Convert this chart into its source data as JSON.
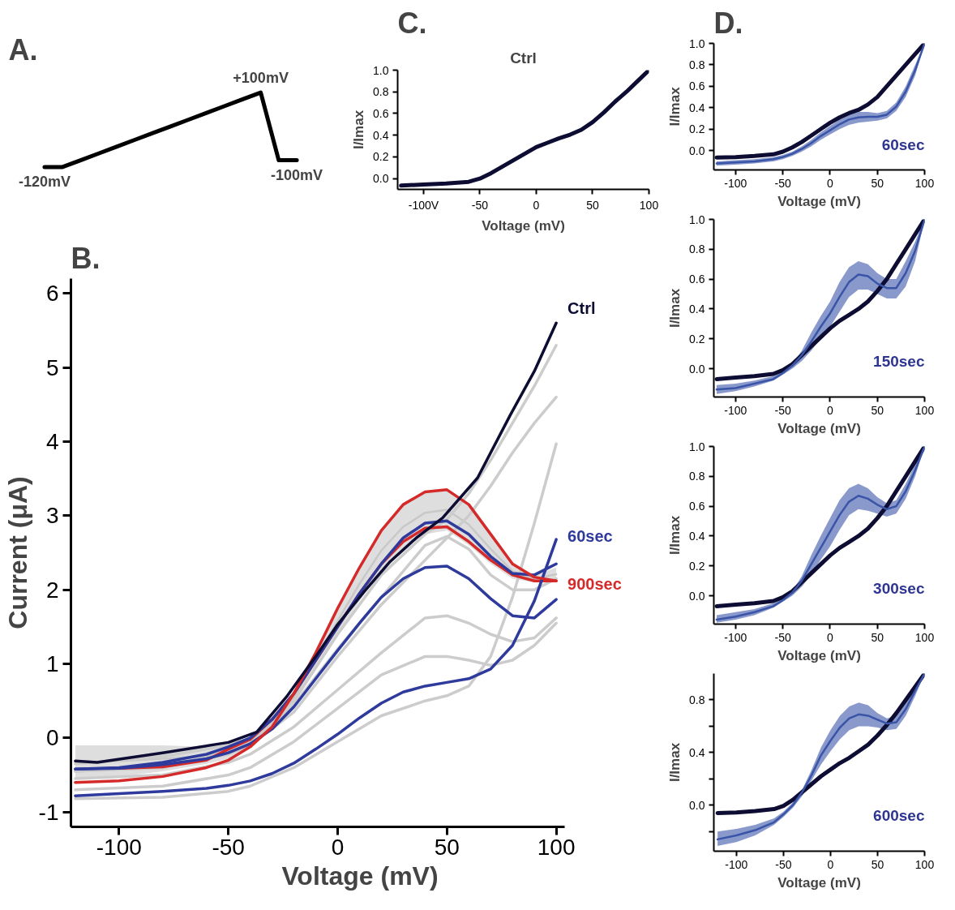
{
  "chart_data": [
    {
      "type": "line",
      "title": "A.",
      "tick_labels": false,
      "categories": [
        null,
        null,
        null,
        null,
        null,
        null,
        null,
        null,
        null,
        null,
        null,
        null,
        null,
        null,
        null
      ],
      "series": [
        {
          "color": "#000000",
          "values": [
            -120,
            -120,
            -100,
            -80,
            -60,
            -40,
            -20,
            0,
            20,
            40,
            60,
            80,
            100,
            -100,
            -100
          ],
          "value_labels": [
            "-120mV",
            null,
            null,
            null,
            null,
            null,
            null,
            null,
            null,
            null,
            null,
            null,
            "+100mV",
            null,
            "-100mV"
          ]
        }
      ]
    },
    {
      "type": "line",
      "title": "B.",
      "xlabel": "Voltage (mV)",
      "ylabel": "Current (μA)",
      "xlim": [
        -122,
        104
      ],
      "ylim": [
        -1.2,
        6.2
      ],
      "xticks": [
        -100,
        -50,
        0,
        50,
        100
      ],
      "yticks": [
        -1,
        0,
        1,
        2,
        3,
        4,
        5,
        6
      ],
      "x": [
        -120,
        -100,
        -80,
        -60,
        -50,
        -40,
        -30,
        -20,
        -10,
        0,
        10,
        20,
        30,
        40,
        50,
        60,
        70,
        80,
        90,
        100
      ],
      "series": [
        {
          "color": "#c8c8c8",
          "values": [
            -0.33,
            -0.31,
            -0.28,
            -0.24,
            -0.19,
            -0.06,
            0.2,
            0.55,
            1.05,
            1.58,
            2.08,
            2.53,
            2.85,
            3.04,
            3.08,
            2.88,
            2.55,
            2.25,
            2.15,
            2.21
          ],
          "lower": [
            -0.55,
            -0.52,
            -0.45,
            -0.35,
            -0.28,
            -0.12,
            0.15,
            0.5,
            0.95,
            1.4,
            1.85,
            2.25,
            2.55,
            2.75,
            2.8,
            2.6,
            2.35,
            2.15,
            2.1,
            2.12
          ],
          "upper": [
            -0.1,
            -0.1,
            -0.1,
            -0.12,
            -0.1,
            0.0,
            0.25,
            0.6,
            1.15,
            1.75,
            2.3,
            2.8,
            3.15,
            3.32,
            3.35,
            3.15,
            2.75,
            2.35,
            2.2,
            2.3
          ]
        },
        {
          "color": "#cccccc",
          "x": [
            -120,
            -80,
            -50,
            -40,
            -20,
            0,
            20,
            40,
            50,
            60,
            70,
            80,
            90,
            100
          ],
          "values": [
            -0.35,
            -0.25,
            -0.1,
            0.0,
            0.5,
            1.4,
            2.2,
            2.75,
            2.95,
            3.3,
            3.75,
            4.25,
            4.75,
            5.3
          ]
        },
        {
          "color": "#cccccc",
          "x": [
            -120,
            -80,
            -50,
            -40,
            -20,
            0,
            20,
            40,
            50,
            60,
            70,
            80,
            90,
            100
          ],
          "values": [
            -0.45,
            -0.38,
            -0.22,
            -0.1,
            0.35,
            1.1,
            1.8,
            2.4,
            2.7,
            3.0,
            3.4,
            3.85,
            4.25,
            4.6
          ]
        },
        {
          "color": "#cccccc",
          "x": [
            -120,
            -80,
            -50,
            -40,
            -20,
            0,
            20,
            40,
            50,
            60,
            70,
            80,
            90,
            100
          ],
          "values": [
            -0.45,
            -0.4,
            -0.2,
            -0.08,
            0.45,
            1.2,
            1.9,
            2.6,
            2.72,
            2.55,
            2.2,
            2.0,
            2.0,
            2.15
          ]
        },
        {
          "color": "#cccccc",
          "x": [
            -120,
            -80,
            -50,
            -40,
            -20,
            0,
            20,
            40,
            50,
            60,
            70,
            80,
            90,
            100
          ],
          "values": [
            -0.55,
            -0.5,
            -0.33,
            -0.22,
            0.15,
            0.65,
            1.15,
            1.62,
            1.65,
            1.55,
            1.4,
            1.3,
            1.35,
            1.62
          ]
        },
        {
          "color": "#cccccc",
          "x": [
            -120,
            -80,
            -50,
            -40,
            -20,
            0,
            20,
            40,
            50,
            60,
            70,
            80,
            90,
            100
          ],
          "values": [
            -0.7,
            -0.65,
            -0.5,
            -0.4,
            -0.05,
            0.4,
            0.85,
            1.1,
            1.1,
            1.05,
            0.98,
            1.05,
            1.25,
            1.55
          ]
        },
        {
          "color": "#cccccc",
          "x": [
            -120,
            -80,
            -50,
            -40,
            -20,
            0,
            20,
            40,
            50,
            60,
            70,
            80,
            90,
            100
          ],
          "values": [
            -0.82,
            -0.8,
            -0.72,
            -0.65,
            -0.4,
            -0.05,
            0.3,
            0.5,
            0.57,
            0.7,
            1.1,
            1.9,
            2.9,
            3.97
          ]
        },
        {
          "color": "#d42a2a",
          "values": [
            null,
            -0.41,
            -0.39,
            -0.3,
            -0.15,
            -0.02,
            0.25,
            0.6,
            1.05,
            1.5,
            1.95,
            2.35,
            2.65,
            2.83,
            2.85,
            2.65,
            2.4,
            2.2,
            2.12,
            2.12
          ]
        },
        {
          "color": "#2e3a9c",
          "values": [
            -0.42,
            -0.4,
            -0.33,
            -0.22,
            -0.12,
            0.0,
            0.25,
            0.6,
            1.05,
            1.5,
            1.95,
            2.35,
            2.7,
            2.9,
            2.93,
            2.75,
            2.45,
            2.22,
            2.2,
            2.35
          ]
        },
        {
          "color": "#2e3a9c",
          "values": [
            -0.42,
            -0.41,
            -0.36,
            -0.28,
            -0.2,
            -0.08,
            0.12,
            0.42,
            0.8,
            1.18,
            1.55,
            1.9,
            2.15,
            2.3,
            2.32,
            2.15,
            1.88,
            1.65,
            1.62,
            1.87
          ]
        },
        {
          "name": "60sec",
          "color": "#2e3a9c",
          "values": [
            -0.78,
            -0.75,
            -0.72,
            -0.68,
            -0.64,
            -0.58,
            -0.48,
            -0.34,
            -0.15,
            0.05,
            0.27,
            0.47,
            0.62,
            0.7,
            0.75,
            0.8,
            0.93,
            1.25,
            1.85,
            2.68
          ]
        },
        {
          "name": "900sec",
          "color": "#d42a2a",
          "values": [
            -0.6,
            -0.58,
            -0.52,
            -0.4,
            -0.3,
            -0.12,
            0.15,
            0.6,
            1.15,
            1.75,
            2.3,
            2.8,
            3.15,
            3.32,
            3.35,
            3.15,
            2.75,
            2.35,
            2.17,
            2.12
          ]
        },
        {
          "name": "Ctrl",
          "color": "#0d0c33",
          "x": [
            -120,
            -110,
            -80,
            -50,
            -37,
            -23,
            -10,
            0,
            12,
            24,
            36,
            48,
            64,
            79,
            90,
            100
          ],
          "values": [
            -0.31,
            -0.33,
            -0.2,
            -0.06,
            0.08,
            0.57,
            1.1,
            1.53,
            1.97,
            2.38,
            2.7,
            2.97,
            3.51,
            4.36,
            4.95,
            5.6
          ]
        }
      ]
    },
    {
      "type": "line",
      "title": "C.",
      "subtitle": "Ctrl",
      "xlabel": "Voltage (mV)",
      "ylabel": "I/Imax",
      "xlim": [
        -123,
        100
      ],
      "ylim": [
        -0.1,
        1.0
      ],
      "xticks": [
        {
          "value": -100,
          "label": "-100V"
        },
        -50,
        0,
        50,
        100
      ],
      "yticks": [
        {
          "value": 0,
          "label": "0.0"
        },
        0.2,
        0.4,
        0.6,
        0.8,
        {
          "value": 1,
          "label": "1.0"
        }
      ],
      "x": [
        -120,
        -100,
        -80,
        -60,
        -50,
        -40,
        -30,
        -20,
        -10,
        0,
        10,
        20,
        30,
        40,
        50,
        60,
        70,
        80,
        90,
        100
      ],
      "series": [
        {
          "color": "#0d0c33",
          "values": [
            -0.065,
            -0.055,
            -0.045,
            -0.03,
            0.0,
            0.05,
            0.11,
            0.17,
            0.23,
            0.29,
            0.33,
            0.37,
            0.405,
            0.45,
            0.52,
            0.61,
            0.71,
            0.8,
            0.9,
            1.0
          ]
        }
      ]
    },
    {
      "type": "line",
      "title": "D.",
      "xlabel": "Voltage (mV)",
      "ylabel": "I/Imax",
      "xlim": [
        -123,
        100
      ],
      "ylim": [
        -0.18,
        1.0
      ],
      "xticks": [
        -100,
        -50,
        0,
        50,
        100
      ],
      "yticks": [
        {
          "value": 0,
          "label": "0.0"
        },
        0.2,
        0.4,
        0.6,
        0.8,
        {
          "value": 1,
          "label": "1.0"
        }
      ],
      "x": [
        -120,
        -100,
        -80,
        -60,
        -50,
        -40,
        -30,
        -20,
        -10,
        0,
        10,
        20,
        30,
        40,
        50,
        60,
        70,
        80,
        90,
        100
      ],
      "series": [
        {
          "color": "#0d0c33",
          "values": [
            -0.065,
            -0.06,
            -0.05,
            -0.035,
            -0.01,
            0.03,
            0.08,
            0.14,
            0.2,
            0.26,
            0.31,
            0.35,
            0.38,
            0.43,
            0.5,
            0.6,
            0.7,
            0.8,
            0.9,
            1.0
          ]
        },
        {
          "name": "60sec",
          "color": "#3a55a8",
          "values": [
            -0.12,
            -0.11,
            -0.1,
            -0.08,
            -0.06,
            -0.03,
            0.015,
            0.07,
            0.135,
            0.19,
            0.245,
            0.29,
            0.31,
            0.315,
            0.315,
            0.335,
            0.41,
            0.55,
            0.75,
            1.0
          ],
          "lower": [
            -0.14,
            -0.13,
            -0.12,
            -0.1,
            -0.08,
            -0.05,
            -0.01,
            0.04,
            0.1,
            0.15,
            0.2,
            0.24,
            0.26,
            0.27,
            0.28,
            0.3,
            0.37,
            0.5,
            0.7,
            1.0
          ],
          "upper": [
            -0.1,
            -0.09,
            -0.08,
            -0.06,
            -0.04,
            -0.01,
            0.04,
            0.1,
            0.17,
            0.23,
            0.29,
            0.34,
            0.36,
            0.36,
            0.35,
            0.37,
            0.45,
            0.6,
            0.8,
            1.0
          ]
        }
      ]
    },
    {
      "type": "line",
      "xlabel": "Voltage (mV)",
      "ylabel": "I/Imax",
      "xlim": [
        -123,
        100
      ],
      "ylim": [
        -0.19,
        1.0
      ],
      "xticks": [
        -100,
        -50,
        0,
        50,
        100
      ],
      "yticks": [
        {
          "value": 0,
          "label": "0.0"
        },
        0.2,
        0.4,
        0.6,
        0.8,
        {
          "value": 1,
          "label": "1.0"
        }
      ],
      "x": [
        -120,
        -100,
        -80,
        -60,
        -50,
        -40,
        -30,
        -20,
        -10,
        0,
        10,
        20,
        30,
        40,
        50,
        60,
        70,
        80,
        90,
        100
      ],
      "series": [
        {
          "color": "#0d0c33",
          "values": [
            -0.07,
            -0.06,
            -0.05,
            -0.035,
            -0.01,
            0.03,
            0.09,
            0.15,
            0.21,
            0.27,
            0.32,
            0.36,
            0.4,
            0.45,
            0.52,
            0.6,
            0.7,
            0.8,
            0.9,
            1.0
          ]
        },
        {
          "name": "150sec",
          "color": "#3a55a8",
          "values": [
            -0.14,
            -0.13,
            -0.1,
            -0.07,
            -0.03,
            0.02,
            0.09,
            0.18,
            0.28,
            0.37,
            0.48,
            0.58,
            0.63,
            0.62,
            0.57,
            0.54,
            0.54,
            0.64,
            0.79,
            1.0
          ],
          "lower": [
            -0.17,
            -0.15,
            -0.12,
            -0.08,
            -0.04,
            0.0,
            0.05,
            0.12,
            0.2,
            0.28,
            0.38,
            0.48,
            0.53,
            0.53,
            0.5,
            0.47,
            0.47,
            0.55,
            0.72,
            1.0
          ],
          "upper": [
            -0.11,
            -0.1,
            -0.08,
            -0.05,
            -0.02,
            0.03,
            0.12,
            0.24,
            0.35,
            0.45,
            0.58,
            0.68,
            0.72,
            0.7,
            0.64,
            0.6,
            0.6,
            0.72,
            0.85,
            1.0
          ]
        }
      ]
    },
    {
      "type": "line",
      "xlabel": "Voltage (mV)",
      "ylabel": "I/Imax",
      "xlim": [
        -123,
        100
      ],
      "ylim": [
        -0.19,
        1.0
      ],
      "xticks": [
        -100,
        -50,
        0,
        50,
        100
      ],
      "yticks": [
        {
          "value": 0,
          "label": "0.0"
        },
        0.2,
        0.4,
        0.6,
        0.8,
        {
          "value": 1,
          "label": "1.0"
        }
      ],
      "x": [
        -120,
        -100,
        -80,
        -60,
        -50,
        -40,
        -30,
        -20,
        -10,
        0,
        10,
        20,
        30,
        40,
        50,
        60,
        70,
        80,
        90,
        100
      ],
      "series": [
        {
          "color": "#0d0c33",
          "values": [
            -0.07,
            -0.06,
            -0.05,
            -0.035,
            -0.01,
            0.03,
            0.09,
            0.15,
            0.21,
            0.27,
            0.32,
            0.36,
            0.4,
            0.45,
            0.52,
            0.6,
            0.7,
            0.8,
            0.9,
            1.0
          ]
        },
        {
          "name": "300sec",
          "color": "#3a55a8",
          "values": [
            -0.16,
            -0.14,
            -0.11,
            -0.07,
            -0.03,
            0.02,
            0.1,
            0.21,
            0.32,
            0.43,
            0.54,
            0.63,
            0.67,
            0.65,
            0.61,
            0.58,
            0.6,
            0.7,
            0.84,
            1.0
          ],
          "lower": [
            -0.18,
            -0.16,
            -0.13,
            -0.08,
            -0.04,
            0.0,
            0.06,
            0.14,
            0.24,
            0.33,
            0.44,
            0.54,
            0.58,
            0.57,
            0.55,
            0.53,
            0.55,
            0.65,
            0.8,
            1.0
          ],
          "upper": [
            -0.13,
            -0.11,
            -0.09,
            -0.05,
            -0.02,
            0.03,
            0.13,
            0.27,
            0.4,
            0.52,
            0.64,
            0.72,
            0.75,
            0.72,
            0.66,
            0.62,
            0.64,
            0.75,
            0.88,
            1.0
          ]
        }
      ]
    },
    {
      "type": "line",
      "xlabel": "Voltage (mV)",
      "ylabel": "I/Imax",
      "xlim": [
        -124,
        100
      ],
      "ylim": [
        -0.35,
        1.0
      ],
      "xticks": [
        -100,
        -50,
        0,
        50,
        100
      ],
      "yticks": [
        {
          "value": -0.2,
          "label": null
        },
        {
          "value": 0,
          "label": "0.0"
        },
        {
          "value": 0.2,
          "label": null
        },
        0.4,
        {
          "value": 0.6,
          "label": null
        },
        0.8
      ],
      "x": [
        -120,
        -100,
        -80,
        -60,
        -50,
        -40,
        -30,
        -20,
        -10,
        0,
        10,
        20,
        30,
        40,
        50,
        60,
        70,
        80,
        90,
        100
      ],
      "series": [
        {
          "color": "#0d0c33",
          "values": [
            -0.06,
            -0.055,
            -0.045,
            -0.03,
            -0.005,
            0.04,
            0.1,
            0.16,
            0.22,
            0.27,
            0.32,
            0.36,
            0.41,
            0.46,
            0.53,
            0.61,
            0.7,
            0.8,
            0.9,
            1.0
          ]
        },
        {
          "name": "600sec",
          "color": "#3a55a8",
          "values": [
            -0.26,
            -0.23,
            -0.19,
            -0.13,
            -0.07,
            0,
            0.1,
            0.23,
            0.38,
            0.49,
            0.59,
            0.66,
            0.69,
            0.68,
            0.65,
            0.62,
            0.63,
            0.73,
            0.87,
            1.0
          ],
          "lower": [
            -0.31,
            -0.28,
            -0.23,
            -0.15,
            -0.09,
            -0.02,
            0.07,
            0.19,
            0.31,
            0.41,
            0.5,
            0.57,
            0.6,
            0.6,
            0.59,
            0.57,
            0.58,
            0.68,
            0.83,
            1.0
          ],
          "upper": [
            -0.2,
            -0.18,
            -0.15,
            -0.1,
            -0.05,
            0.02,
            0.12,
            0.27,
            0.44,
            0.57,
            0.68,
            0.75,
            0.78,
            0.76,
            0.7,
            0.66,
            0.68,
            0.78,
            0.9,
            1.0
          ]
        }
      ]
    }
  ]
}
